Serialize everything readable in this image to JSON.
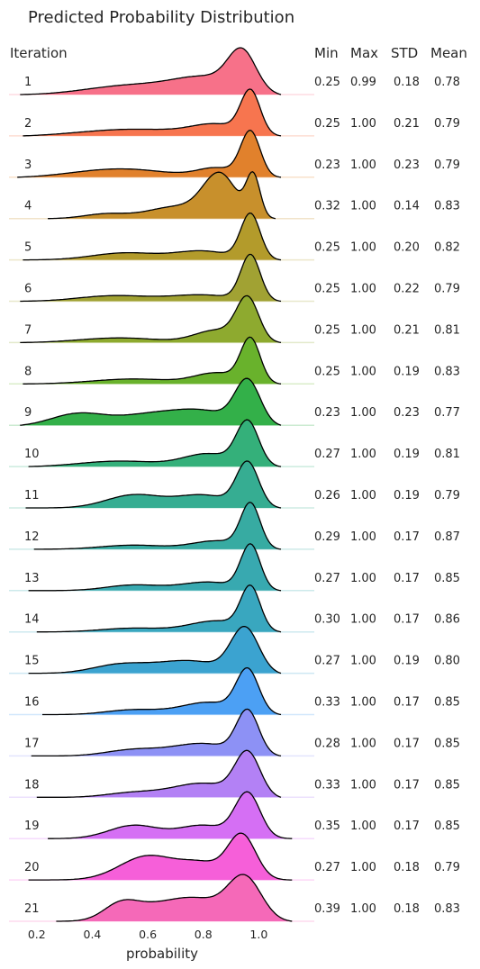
{
  "chart_data": {
    "type": "ridgeline",
    "title": "Predicted Probability Distribution",
    "row_header": "Iteration",
    "stat_headers": [
      "Min",
      "Max",
      "STD",
      "Mean"
    ],
    "xlabel": "probability",
    "xticks": [
      "0.2",
      "0.4",
      "0.6",
      "0.8",
      "1.0"
    ],
    "xlim": [
      0.1,
      1.2
    ],
    "rows": [
      {
        "iteration": "1",
        "min": "0.25",
        "max": "0.99",
        "std": "0.18",
        "mean": "0.78",
        "color": "#f77189",
        "range": [
          0.14,
          1.08
        ],
        "peaks": [
          [
            0.94,
            0.05,
            1.0
          ],
          [
            0.82,
            0.12,
            0.45
          ],
          [
            0.55,
            0.17,
            0.28
          ]
        ]
      },
      {
        "iteration": "2",
        "min": "0.25",
        "max": "1.00",
        "std": "0.21",
        "mean": "0.79",
        "color": "#f7754f",
        "range": [
          0.15,
          1.08
        ],
        "peaks": [
          [
            0.97,
            0.035,
            1.0
          ],
          [
            0.85,
            0.09,
            0.25
          ],
          [
            0.55,
            0.2,
            0.18
          ]
        ]
      },
      {
        "iteration": "3",
        "min": "0.23",
        "max": "1.00",
        "std": "0.23",
        "mean": "0.79",
        "color": "#e1812c",
        "range": [
          0.13,
          1.08
        ],
        "peaks": [
          [
            0.97,
            0.035,
            1.0
          ],
          [
            0.85,
            0.07,
            0.2
          ],
          [
            0.5,
            0.17,
            0.2
          ]
        ]
      },
      {
        "iteration": "4",
        "min": "0.32",
        "max": "1.00",
        "std": "0.14",
        "mean": "0.83",
        "color": "#c8902c",
        "range": [
          0.24,
          1.06
        ],
        "peaks": [
          [
            0.86,
            0.06,
            0.9
          ],
          [
            0.98,
            0.025,
            0.85
          ],
          [
            0.7,
            0.1,
            0.25
          ],
          [
            0.45,
            0.08,
            0.1
          ]
        ]
      },
      {
        "iteration": "5",
        "min": "0.25",
        "max": "1.00",
        "std": "0.20",
        "mean": "0.82",
        "color": "#b39b2b",
        "range": [
          0.15,
          1.08
        ],
        "peaks": [
          [
            0.97,
            0.035,
            1.0
          ],
          [
            0.8,
            0.1,
            0.2
          ],
          [
            0.52,
            0.12,
            0.16
          ]
        ]
      },
      {
        "iteration": "6",
        "min": "0.25",
        "max": "1.00",
        "std": "0.22",
        "mean": "0.79",
        "color": "#a1a233",
        "range": [
          0.14,
          1.08
        ],
        "peaks": [
          [
            0.97,
            0.035,
            1.0
          ],
          [
            0.8,
            0.12,
            0.15
          ],
          [
            0.48,
            0.13,
            0.13
          ]
        ]
      },
      {
        "iteration": "7",
        "min": "0.25",
        "max": "1.00",
        "std": "0.21",
        "mean": "0.81",
        "color": "#8eaa2f",
        "range": [
          0.14,
          1.08
        ],
        "peaks": [
          [
            0.96,
            0.04,
            1.0
          ],
          [
            0.85,
            0.08,
            0.3
          ],
          [
            0.5,
            0.15,
            0.12
          ]
        ]
      },
      {
        "iteration": "8",
        "min": "0.25",
        "max": "1.00",
        "std": "0.19",
        "mean": "0.83",
        "color": "#69b22c",
        "range": [
          0.15,
          1.08
        ],
        "peaks": [
          [
            0.97,
            0.035,
            1.0
          ],
          [
            0.85,
            0.08,
            0.25
          ],
          [
            0.55,
            0.15,
            0.12
          ]
        ]
      },
      {
        "iteration": "9",
        "min": "0.23",
        "max": "1.00",
        "std": "0.23",
        "mean": "0.77",
        "color": "#33b049",
        "range": [
          0.14,
          1.08
        ],
        "peaks": [
          [
            0.96,
            0.045,
            1.0
          ],
          [
            0.8,
            0.11,
            0.35
          ],
          [
            0.35,
            0.1,
            0.3
          ],
          [
            0.6,
            0.11,
            0.25
          ]
        ]
      },
      {
        "iteration": "10",
        "min": "0.27",
        "max": "1.00",
        "std": "0.19",
        "mean": "0.81",
        "color": "#34b07a",
        "range": [
          0.17,
          1.08
        ],
        "peaks": [
          [
            0.96,
            0.04,
            1.0
          ],
          [
            0.82,
            0.09,
            0.3
          ],
          [
            0.5,
            0.15,
            0.14
          ]
        ]
      },
      {
        "iteration": "11",
        "min": "0.26",
        "max": "1.00",
        "std": "0.19",
        "mean": "0.79",
        "color": "#36ad92",
        "range": [
          0.16,
          1.08
        ],
        "peaks": [
          [
            0.96,
            0.04,
            1.0
          ],
          [
            0.8,
            0.1,
            0.3
          ],
          [
            0.55,
            0.1,
            0.3
          ]
        ]
      },
      {
        "iteration": "12",
        "min": "0.29",
        "max": "1.00",
        "std": "0.17",
        "mean": "0.87",
        "color": "#37aba2",
        "range": [
          0.19,
          1.08
        ],
        "peaks": [
          [
            0.97,
            0.035,
            1.0
          ],
          [
            0.85,
            0.09,
            0.2
          ],
          [
            0.55,
            0.12,
            0.1
          ]
        ]
      },
      {
        "iteration": "13",
        "min": "0.27",
        "max": "1.00",
        "std": "0.17",
        "mean": "0.85",
        "color": "#38a9b0",
        "range": [
          0.17,
          1.08
        ],
        "peaks": [
          [
            0.97,
            0.035,
            1.0
          ],
          [
            0.82,
            0.1,
            0.2
          ],
          [
            0.55,
            0.1,
            0.13
          ]
        ]
      },
      {
        "iteration": "14",
        "min": "0.30",
        "max": "1.00",
        "std": "0.17",
        "mean": "0.86",
        "color": "#39a7bf",
        "range": [
          0.2,
          1.08
        ],
        "peaks": [
          [
            0.97,
            0.035,
            1.0
          ],
          [
            0.85,
            0.1,
            0.28
          ],
          [
            0.55,
            0.12,
            0.1
          ]
        ]
      },
      {
        "iteration": "15",
        "min": "0.27",
        "max": "1.00",
        "std": "0.19",
        "mean": "0.80",
        "color": "#3ba3d0",
        "range": [
          0.17,
          1.08
        ],
        "peaks": [
          [
            0.95,
            0.05,
            1.0
          ],
          [
            0.75,
            0.12,
            0.3
          ],
          [
            0.5,
            0.1,
            0.2
          ]
        ]
      },
      {
        "iteration": "16",
        "min": "0.33",
        "max": "1.00",
        "std": "0.17",
        "mean": "0.85",
        "color": "#4ca0f4",
        "range": [
          0.22,
          1.08
        ],
        "peaks": [
          [
            0.96,
            0.04,
            1.0
          ],
          [
            0.82,
            0.1,
            0.3
          ],
          [
            0.55,
            0.1,
            0.12
          ]
        ]
      },
      {
        "iteration": "17",
        "min": "0.28",
        "max": "1.00",
        "std": "0.17",
        "mean": "0.85",
        "color": "#8d91f5",
        "range": [
          0.18,
          1.08
        ],
        "peaks": [
          [
            0.96,
            0.04,
            1.0
          ],
          [
            0.8,
            0.11,
            0.3
          ],
          [
            0.55,
            0.1,
            0.15
          ]
        ]
      },
      {
        "iteration": "18",
        "min": "0.33",
        "max": "1.00",
        "std": "0.17",
        "mean": "0.85",
        "color": "#b381f5",
        "range": [
          0.2,
          1.08
        ],
        "peaks": [
          [
            0.96,
            0.045,
            1.0
          ],
          [
            0.8,
            0.11,
            0.35
          ],
          [
            0.55,
            0.1,
            0.12
          ]
        ]
      },
      {
        "iteration": "19",
        "min": "0.35",
        "max": "1.00",
        "std": "0.17",
        "mean": "0.85",
        "color": "#d56ff4",
        "range": [
          0.24,
          1.12
        ],
        "peaks": [
          [
            0.96,
            0.045,
            1.0
          ],
          [
            0.8,
            0.09,
            0.3
          ],
          [
            0.55,
            0.09,
            0.3
          ]
        ]
      },
      {
        "iteration": "20",
        "min": "0.27",
        "max": "1.00",
        "std": "0.18",
        "mean": "0.79",
        "color": "#f65fd9",
        "range": [
          0.17,
          1.12
        ],
        "peaks": [
          [
            0.94,
            0.05,
            1.0
          ],
          [
            0.6,
            0.1,
            0.55
          ],
          [
            0.8,
            0.08,
            0.35
          ]
        ]
      },
      {
        "iteration": "21",
        "min": "0.39",
        "max": "1.00",
        "std": "0.18",
        "mean": "0.83",
        "color": "#f569b8",
        "range": [
          0.27,
          1.12
        ],
        "peaks": [
          [
            0.95,
            0.06,
            1.0
          ],
          [
            0.78,
            0.1,
            0.5
          ],
          [
            0.5,
            0.06,
            0.3
          ],
          [
            0.6,
            0.1,
            0.3
          ]
        ]
      }
    ]
  }
}
